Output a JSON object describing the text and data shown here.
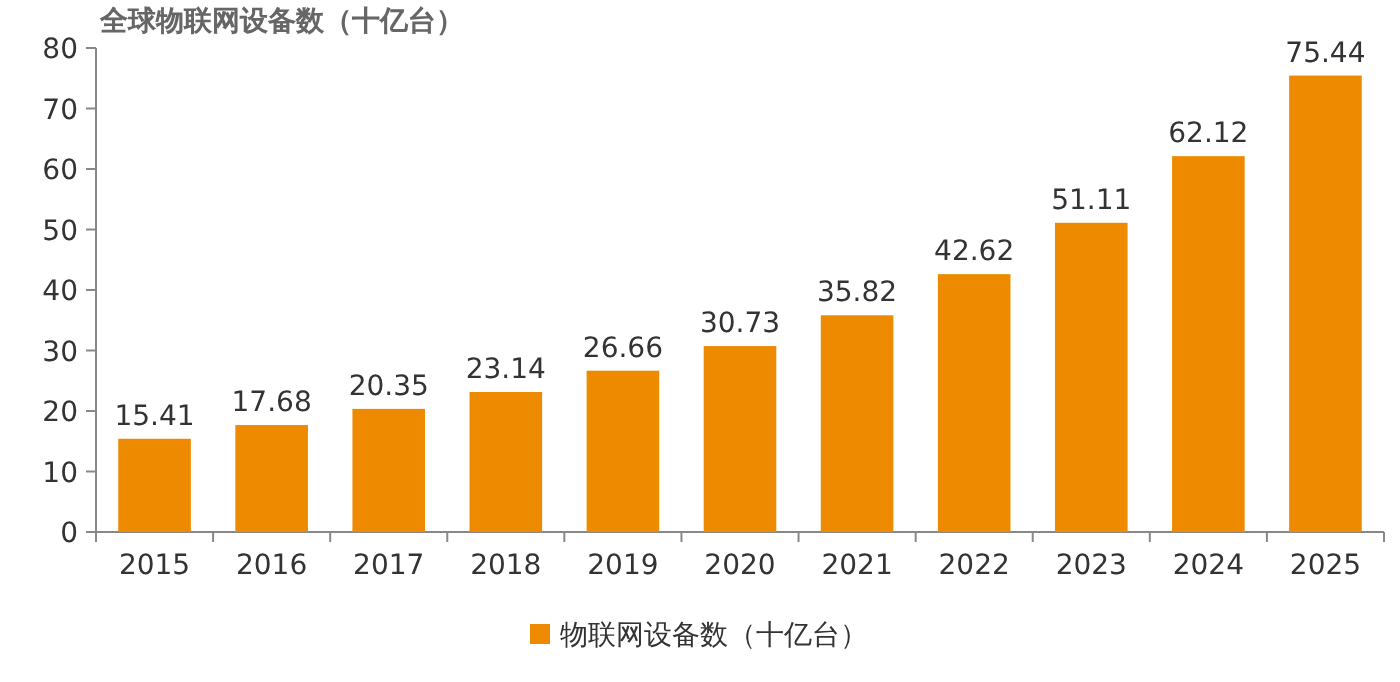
{
  "chart_data": {
    "type": "bar",
    "title": "全球物联网设备数（十亿台）",
    "categories": [
      "2015",
      "2016",
      "2017",
      "2018",
      "2019",
      "2020",
      "2021",
      "2022",
      "2023",
      "2024",
      "2025"
    ],
    "series": [
      {
        "name": "物联网设备数（十亿台）",
        "color": "#ee8a00",
        "values": [
          15.41,
          17.68,
          20.35,
          23.14,
          26.66,
          30.73,
          35.82,
          42.62,
          51.11,
          62.12,
          75.44
        ]
      }
    ],
    "ylim": [
      0,
      80
    ],
    "yticks": [
      0,
      10,
      20,
      30,
      40,
      50,
      60,
      70,
      80
    ],
    "data_labels": true,
    "legend": "bottom"
  }
}
